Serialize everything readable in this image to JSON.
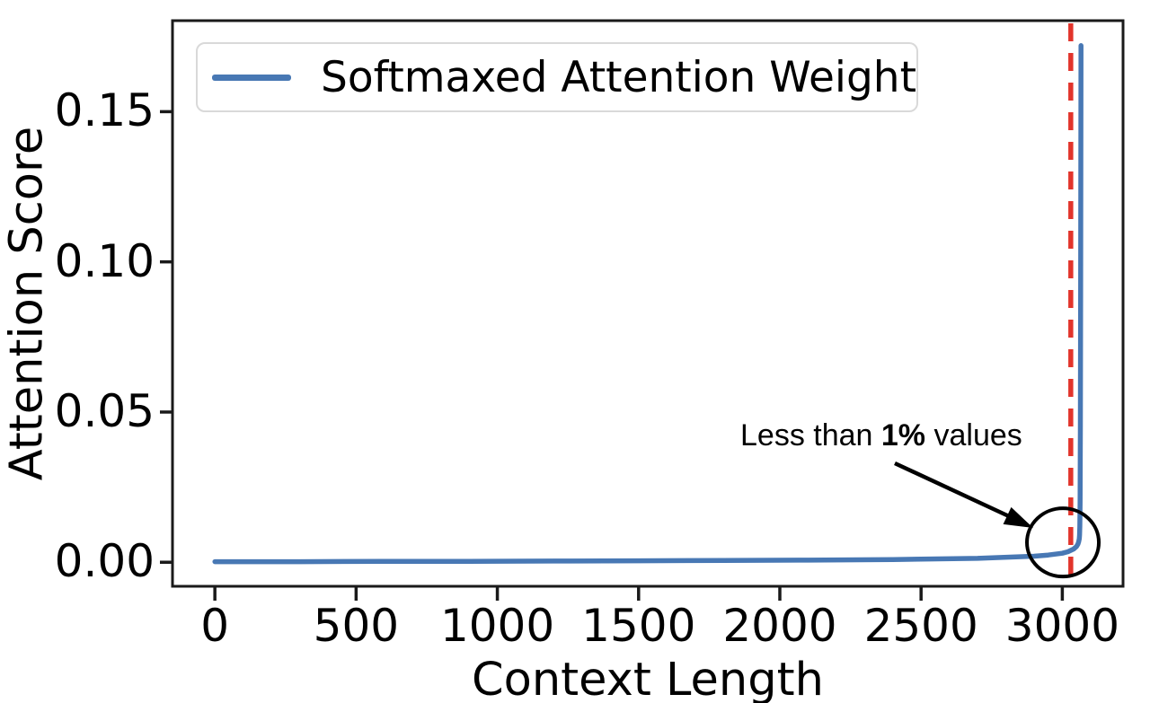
{
  "chart_data": {
    "type": "line",
    "xlabel": "Context Length",
    "ylabel": "Attention Score",
    "legend_label": "Softmaxed Attention Weight",
    "legend_position": "upper left",
    "grid": false,
    "xlim": [
      -150,
      3215
    ],
    "ylim": [
      -0.008,
      0.1803
    ],
    "x_ticks": [
      0,
      500,
      1000,
      1500,
      2000,
      2500,
      3000
    ],
    "y_ticks": [
      {
        "value": 0.0,
        "label": "0.00"
      },
      {
        "value": 0.05,
        "label": "0.05"
      },
      {
        "value": 0.1,
        "label": "0.10"
      },
      {
        "value": 0.15,
        "label": "0.15"
      }
    ],
    "series": [
      {
        "name": "Softmaxed Attention Weight",
        "color": "#4878b4",
        "points": [
          [
            0,
            0.0002
          ],
          [
            300,
            0.0002
          ],
          [
            600,
            0.0003
          ],
          [
            900,
            0.0003
          ],
          [
            1200,
            0.0004
          ],
          [
            1500,
            0.0005
          ],
          [
            1800,
            0.0006
          ],
          [
            2100,
            0.0007
          ],
          [
            2400,
            0.0009
          ],
          [
            2700,
            0.0013
          ],
          [
            2900,
            0.002
          ],
          [
            2950,
            0.0024
          ],
          [
            3000,
            0.003
          ],
          [
            3020,
            0.0035
          ],
          [
            3040,
            0.0044
          ],
          [
            3050,
            0.0052
          ],
          [
            3055,
            0.006
          ],
          [
            3058,
            0.0068
          ],
          [
            3060,
            0.0078
          ],
          [
            3061,
            0.009
          ],
          [
            3062,
            0.012
          ],
          [
            3063,
            0.02
          ],
          [
            3064,
            0.045
          ],
          [
            3065,
            0.09
          ],
          [
            3065.5,
            0.13
          ],
          [
            3066,
            0.172
          ]
        ]
      }
    ],
    "vline": {
      "x": 3030,
      "color": "#e2342b",
      "style": "dashed"
    },
    "annotation": {
      "text": "Less than 1% values",
      "prefix": "Less than ",
      "bold": "1%",
      "suffix": " values",
      "circle_center": [
        3002,
        0.0066
      ]
    },
    "spine_color": "#1a1a1a",
    "annotation_color": "#000000"
  }
}
